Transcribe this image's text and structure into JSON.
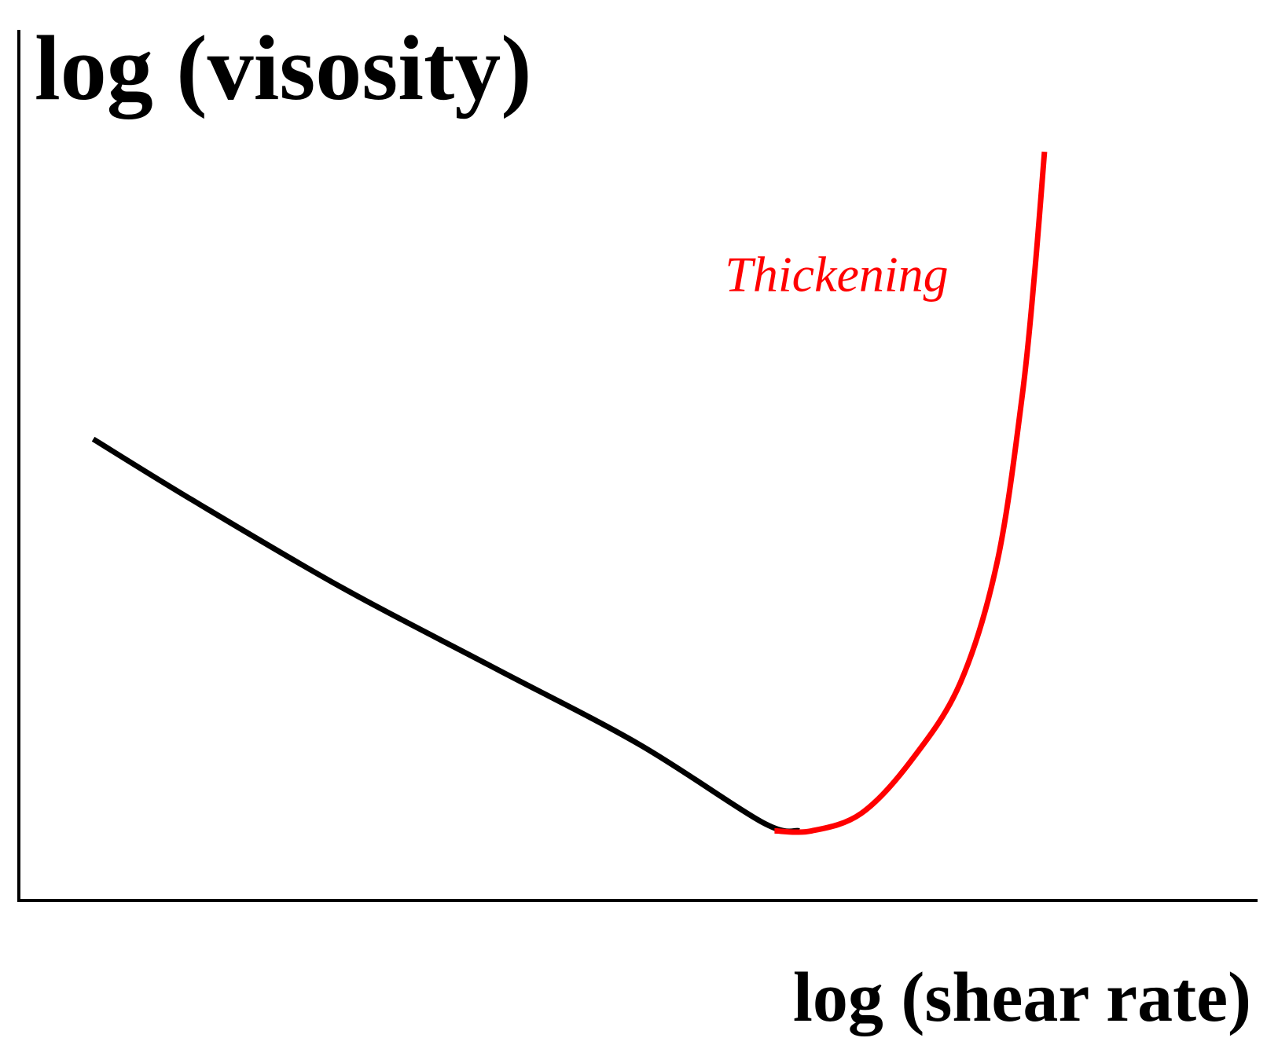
{
  "chart_data": {
    "type": "line",
    "title": "",
    "xlabel": "log (shear rate)",
    "ylabel": "log (visosity)",
    "grid": false,
    "axis_ticks": false,
    "xlim": [
      0,
      100
    ],
    "ylim": [
      0,
      100
    ],
    "series": [
      {
        "color": "#000000",
        "points": [
          [
            6,
            53
          ],
          [
            14,
            46
          ],
          [
            26,
            36
          ],
          [
            38,
            27
          ],
          [
            50,
            18
          ],
          [
            60,
            9
          ],
          [
            63,
            8
          ]
        ]
      },
      {
        "color": "#ff0000",
        "points": [
          [
            61,
            8
          ],
          [
            64,
            8
          ],
          [
            68,
            10
          ],
          [
            72,
            16
          ],
          [
            76,
            25
          ],
          [
            79,
            39
          ],
          [
            81,
            58
          ],
          [
            82,
            72
          ],
          [
            82.8,
            86
          ]
        ]
      }
    ],
    "annotations": [
      {
        "text": "Thickening",
        "color": "#ff0000",
        "x": 57,
        "y": 70
      }
    ]
  }
}
